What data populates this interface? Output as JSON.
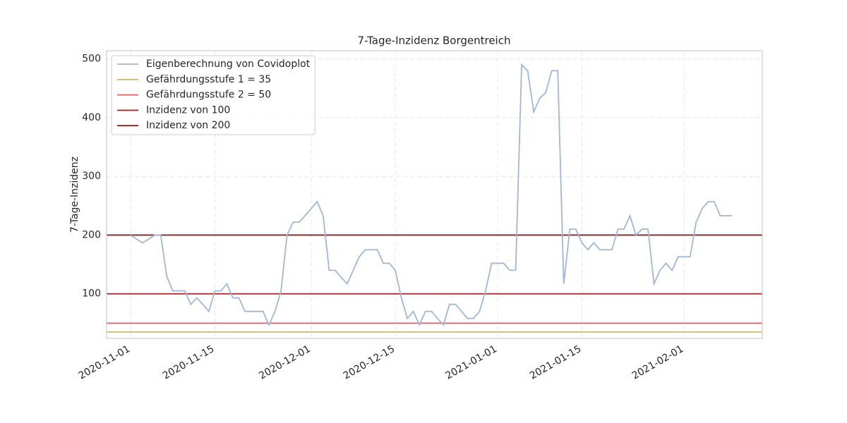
{
  "chart_data": {
    "type": "line",
    "title": "7-Tage-Inzidenz Borgentreich",
    "y_label": "7-Tage-Inzidenz",
    "x": [
      "2020-11-01",
      "2020-11-02",
      "2020-11-03",
      "2020-11-04",
      "2020-11-05",
      "2020-11-06",
      "2020-11-07",
      "2020-11-08",
      "2020-11-09",
      "2020-11-10",
      "2020-11-11",
      "2020-11-12",
      "2020-11-13",
      "2020-11-14",
      "2020-11-15",
      "2020-11-16",
      "2020-11-17",
      "2020-11-18",
      "2020-11-19",
      "2020-11-20",
      "2020-11-21",
      "2020-11-22",
      "2020-11-23",
      "2020-11-24",
      "2020-11-25",
      "2020-11-26",
      "2020-11-27",
      "2020-11-28",
      "2020-11-29",
      "2020-11-30",
      "2020-12-01",
      "2020-12-02",
      "2020-12-03",
      "2020-12-04",
      "2020-12-05",
      "2020-12-06",
      "2020-12-07",
      "2020-12-08",
      "2020-12-09",
      "2020-12-10",
      "2020-12-11",
      "2020-12-12",
      "2020-12-13",
      "2020-12-14",
      "2020-12-15",
      "2020-12-16",
      "2020-12-17",
      "2020-12-18",
      "2020-12-19",
      "2020-12-20",
      "2020-12-21",
      "2020-12-22",
      "2020-12-23",
      "2020-12-24",
      "2020-12-25",
      "2020-12-26",
      "2020-12-27",
      "2020-12-28",
      "2020-12-29",
      "2020-12-30",
      "2020-12-31",
      "2021-01-01",
      "2021-01-02",
      "2021-01-03",
      "2021-01-04",
      "2021-01-05",
      "2021-01-06",
      "2021-01-07",
      "2021-01-08",
      "2021-01-09",
      "2021-01-10",
      "2021-01-11",
      "2021-01-12",
      "2021-01-13",
      "2021-01-14",
      "2021-01-15",
      "2021-01-16",
      "2021-01-17",
      "2021-01-18",
      "2021-01-19",
      "2021-01-20",
      "2021-01-21",
      "2021-01-22",
      "2021-01-23",
      "2021-01-24",
      "2021-01-25",
      "2021-01-26",
      "2021-01-27",
      "2021-01-28",
      "2021-01-29",
      "2021-01-30",
      "2021-01-31",
      "2021-02-01",
      "2021-02-02",
      "2021-02-03",
      "2021-02-04",
      "2021-02-05",
      "2021-02-06",
      "2021-02-07",
      "2021-02-08",
      "2021-02-09"
    ],
    "series": [
      {
        "name": "Eigenberechnung von Covidoplot",
        "color": "#a2b6d7",
        "values": [
          200,
          193,
          187,
          193,
          200,
          200,
          130,
          105,
          105,
          105,
          82,
          93,
          82,
          70,
          105,
          105,
          117,
          93,
          93,
          70,
          70,
          70,
          70,
          47,
          70,
          105,
          200,
          222,
          222,
          233,
          245,
          257,
          233,
          140,
          140,
          128,
          117,
          140,
          163,
          175,
          175,
          175,
          152,
          152,
          140,
          93,
          58,
          70,
          47,
          70,
          70,
          58,
          47,
          82,
          82,
          70,
          58,
          58,
          70,
          105,
          152,
          152,
          152,
          140,
          140,
          490,
          480,
          410,
          433,
          443,
          480,
          480,
          117,
          210,
          210,
          187,
          175,
          187,
          175,
          175,
          175,
          210,
          210,
          233,
          200,
          210,
          210,
          117,
          140,
          152,
          140,
          163,
          163,
          163,
          222,
          245,
          257,
          257,
          233,
          233,
          233
        ]
      }
    ],
    "hlines": [
      {
        "name": "Gefährdungsstufe 1 = 35",
        "value": 35,
        "color": "#ccb974"
      },
      {
        "name": "Gefährdungsstufe 2 = 50",
        "value": 50,
        "color": "#d0646a"
      },
      {
        "name": "Inzidenz von 100",
        "value": 100,
        "color": "#a0232a"
      },
      {
        "name": "Inzidenz von 200",
        "value": 200,
        "color": "#8b2020"
      }
    ],
    "xlim": [
      "2020-10-28",
      "2021-02-14"
    ],
    "xticks": [
      "2020-11-01",
      "2020-11-15",
      "2020-12-01",
      "2020-12-15",
      "2021-01-01",
      "2021-01-15",
      "2021-02-01"
    ],
    "ylim": [
      24,
      514
    ],
    "yticks": [
      100,
      200,
      300,
      400,
      500
    ],
    "grid": true,
    "legend": "upper left"
  }
}
